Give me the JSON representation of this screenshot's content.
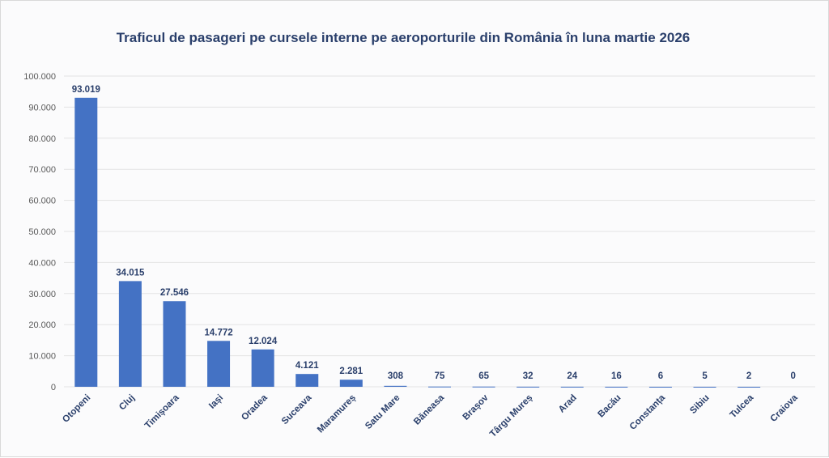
{
  "chart_data": {
    "type": "bar",
    "title": "Traficul de pasageri pe cursele interne pe aeroporturile din România în luna martie 2026",
    "xlabel": "",
    "ylabel": "",
    "categories": [
      "Otopeni",
      "Cluj",
      "Timișoara",
      "Iași",
      "Oradea",
      "Suceava",
      "Maramureș",
      "Satu Mare",
      "Băneasa",
      "Brașov",
      "Târgu Mureș",
      "Arad",
      "Bacău",
      "Constanța",
      "Sibiu",
      "Tulcea",
      "Craiova"
    ],
    "values": [
      93019,
      34015,
      27546,
      14772,
      12024,
      4121,
      2281,
      308,
      75,
      65,
      32,
      24,
      16,
      6,
      5,
      2,
      0
    ],
    "data_labels": [
      "93.019",
      "34.015",
      "27.546",
      "14.772",
      "12.024",
      "4.121",
      "2.281",
      "308",
      "75",
      "65",
      "32",
      "24",
      "16",
      "6",
      "5",
      "2",
      "0"
    ],
    "ylim": [
      0,
      100000
    ],
    "yticks": [
      0,
      10000,
      20000,
      30000,
      40000,
      50000,
      60000,
      70000,
      80000,
      90000,
      100000
    ],
    "ytick_labels": [
      "0",
      "10.000",
      "20.000",
      "30.000",
      "40.000",
      "50.000",
      "60.000",
      "70.000",
      "80.000",
      "90.000",
      "100.000"
    ],
    "grid": true,
    "legend": "none",
    "bar_color": "#4472c4"
  }
}
